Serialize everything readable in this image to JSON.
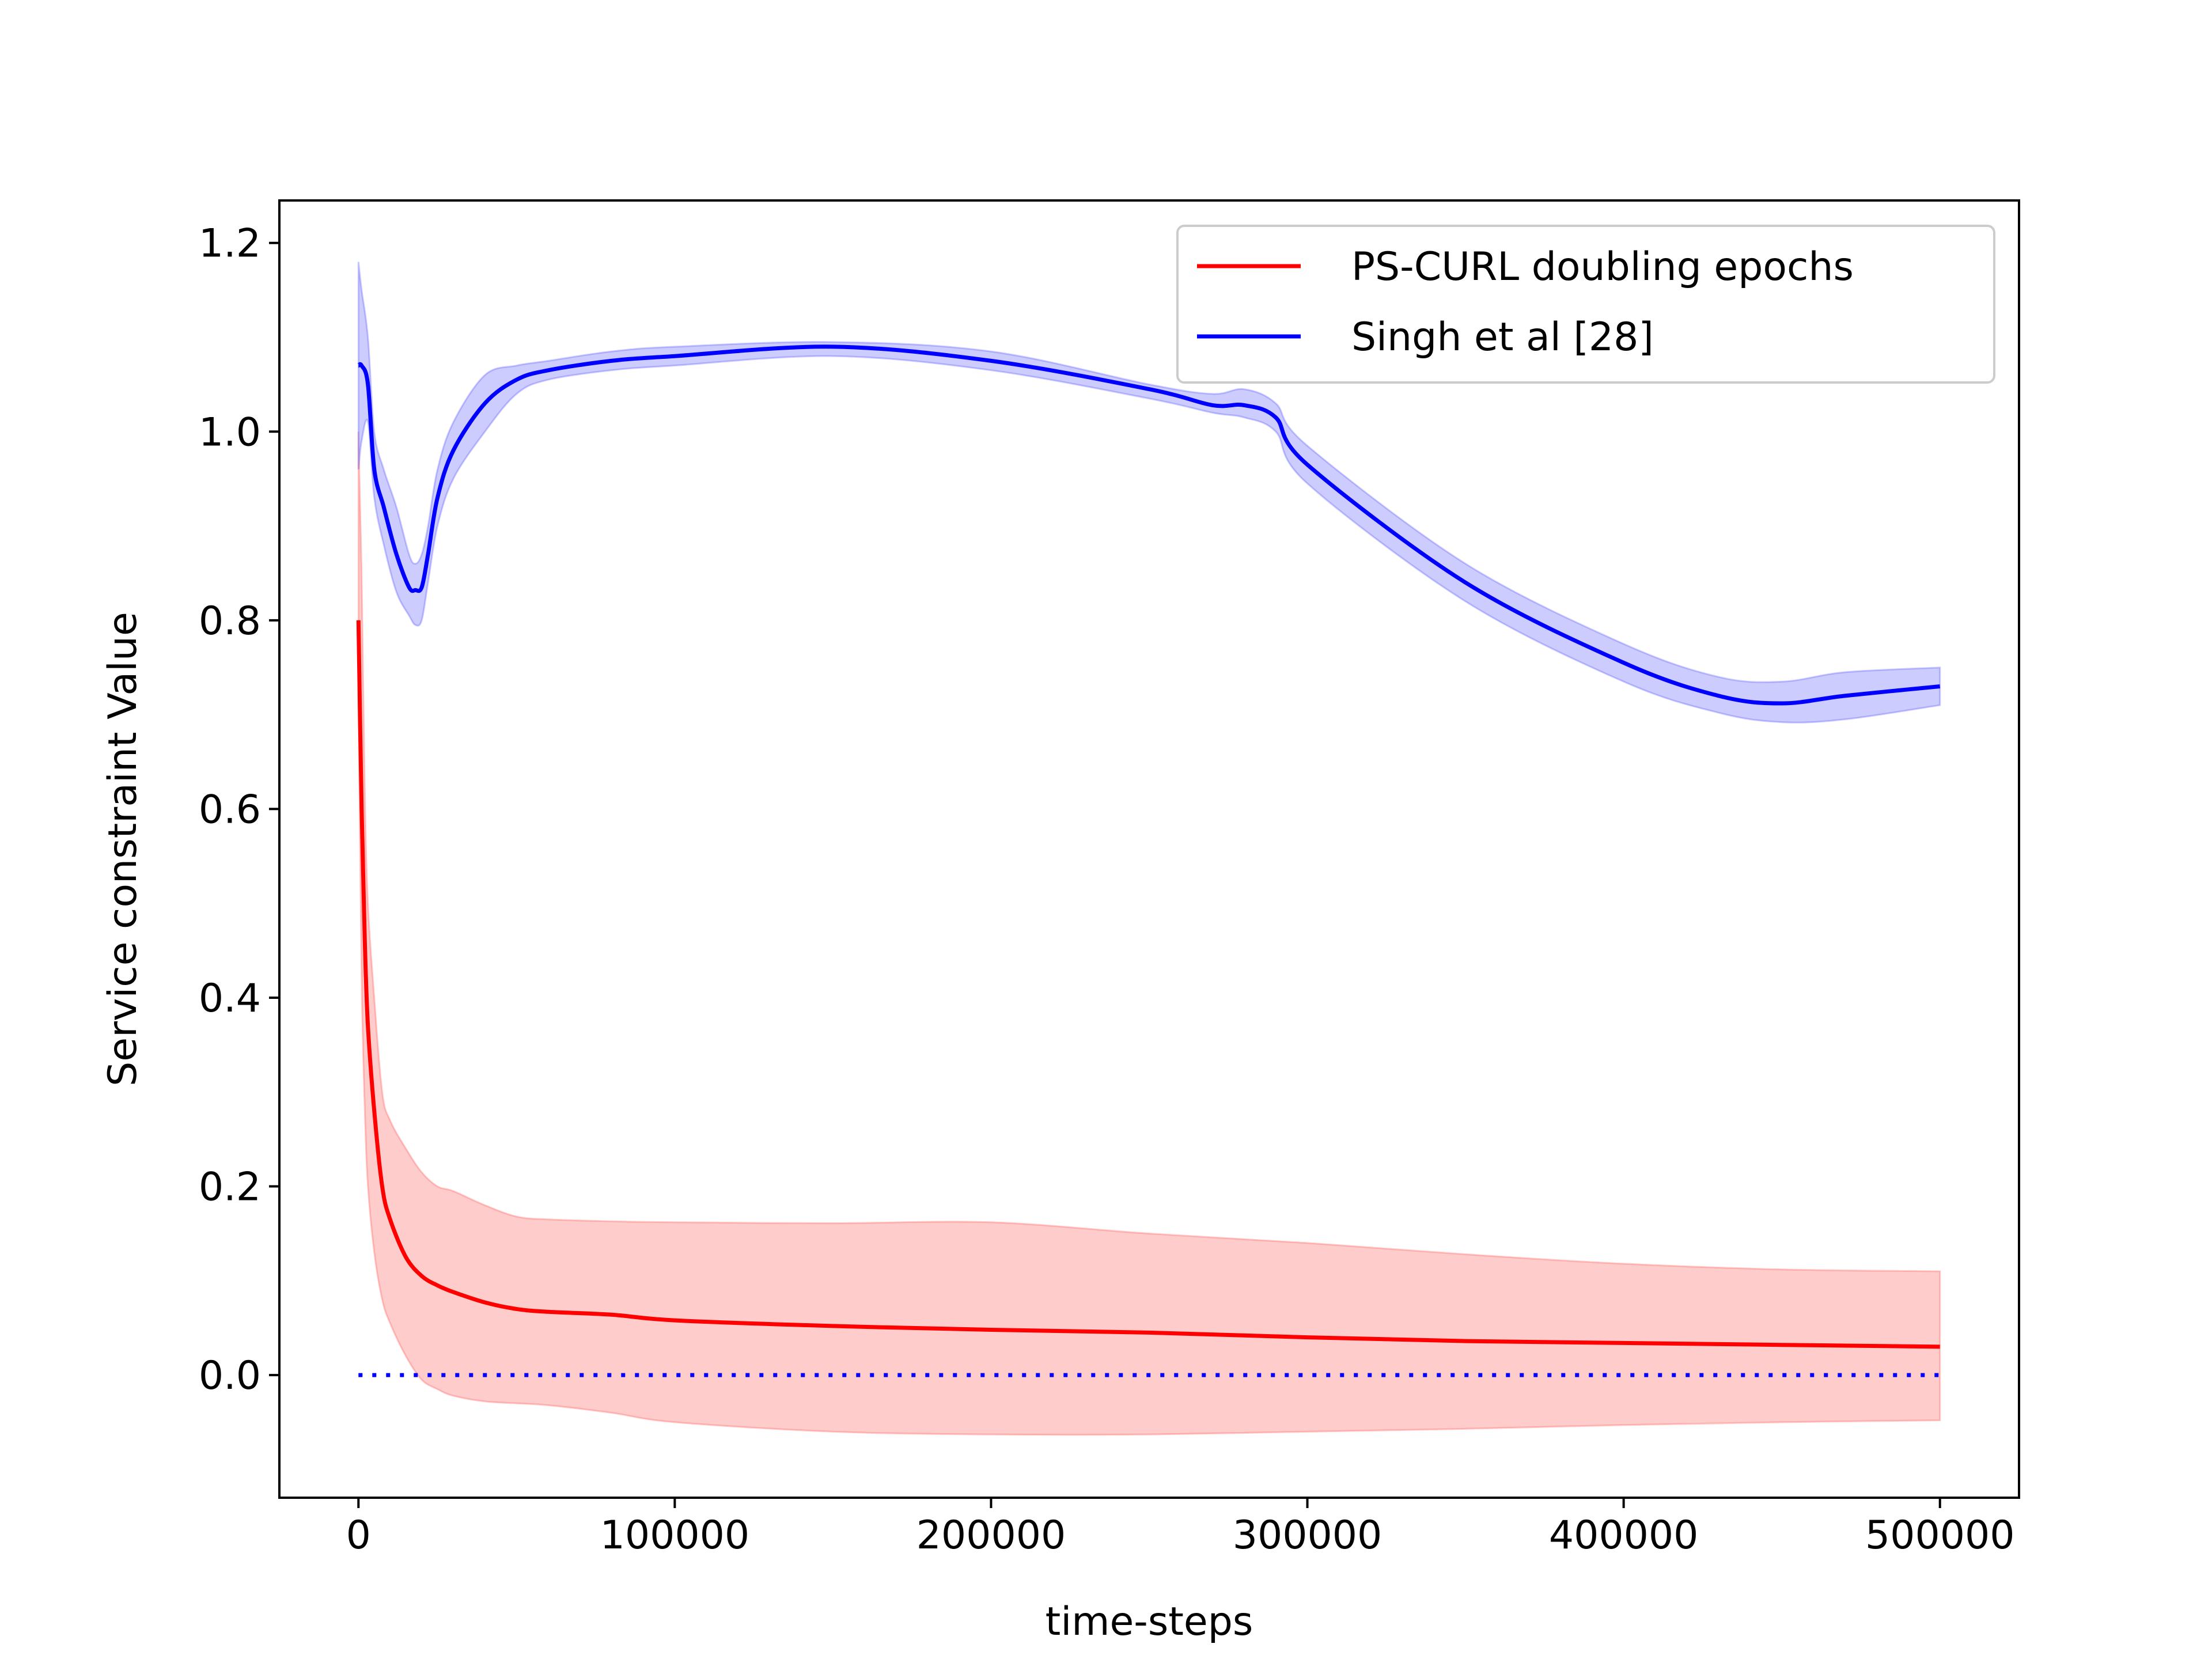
{
  "chart_data": {
    "type": "line",
    "title": "",
    "xlabel": "time-steps",
    "ylabel": "Service constraint Value",
    "xlim": [
      -25000,
      525000
    ],
    "ylim": [
      -0.13,
      1.245
    ],
    "xticks": [
      0,
      100000,
      200000,
      300000,
      400000,
      500000
    ],
    "xtick_labels": [
      "0",
      "100000",
      "200000",
      "300000",
      "400000",
      "500000"
    ],
    "yticks": [
      0.0,
      0.2,
      0.4,
      0.6,
      0.8,
      1.0,
      1.2
    ],
    "ytick_labels": [
      "0.0",
      "0.2",
      "0.4",
      "0.6",
      "0.8",
      "1.0",
      "1.2"
    ],
    "grid": false,
    "legend_position": "top-right",
    "series": [
      {
        "name": "PS-CURL doubling epochs",
        "color": "#ff0000",
        "band_color": "#ff9a9a",
        "x": [
          0,
          1000,
          2000,
          3000,
          5000,
          7500,
          10000,
          15000,
          20000,
          25000,
          30000,
          40000,
          50000,
          60000,
          80000,
          100000,
          150000,
          200000,
          250000,
          300000,
          350000,
          400000,
          450000,
          500000
        ],
        "mean": [
          0.8,
          0.6,
          0.46,
          0.37,
          0.28,
          0.2,
          0.165,
          0.125,
          0.105,
          0.095,
          0.088,
          0.077,
          0.07,
          0.067,
          0.064,
          0.058,
          0.052,
          0.048,
          0.045,
          0.04,
          0.036,
          0.034,
          0.032,
          0.03
        ],
        "upper": [
          1.0,
          0.85,
          0.62,
          0.5,
          0.4,
          0.3,
          0.27,
          0.24,
          0.215,
          0.2,
          0.195,
          0.18,
          0.168,
          0.165,
          0.163,
          0.162,
          0.161,
          0.162,
          0.15,
          0.14,
          0.128,
          0.118,
          0.112,
          0.11
        ],
        "lower": [
          0.71,
          0.42,
          0.28,
          0.2,
          0.13,
          0.08,
          0.055,
          0.02,
          -0.005,
          -0.015,
          -0.022,
          -0.028,
          -0.03,
          -0.032,
          -0.04,
          -0.05,
          -0.06,
          -0.063,
          -0.063,
          -0.06,
          -0.057,
          -0.053,
          -0.05,
          -0.048
        ]
      },
      {
        "name": "Singh et al [28]",
        "color": "#0000ff",
        "band_color": "#9999ff",
        "x": [
          0,
          1000,
          3000,
          5000,
          8000,
          12000,
          16000,
          18000,
          20000,
          22000,
          25000,
          30000,
          40000,
          50000,
          60000,
          80000,
          100000,
          150000,
          200000,
          250000,
          270000,
          280000,
          290000,
          300000,
          350000,
          400000,
          430000,
          450000,
          470000,
          500000
        ],
        "mean": [
          1.07,
          1.07,
          1.05,
          0.96,
          0.92,
          0.87,
          0.835,
          0.832,
          0.835,
          0.87,
          0.93,
          0.98,
          1.03,
          1.055,
          1.065,
          1.075,
          1.08,
          1.09,
          1.075,
          1.045,
          1.028,
          1.028,
          1.015,
          0.965,
          0.84,
          0.755,
          0.72,
          0.712,
          0.72,
          0.73
        ],
        "upper": [
          1.18,
          1.15,
          1.1,
          1.0,
          0.96,
          0.92,
          0.87,
          0.86,
          0.87,
          0.9,
          0.96,
          1.01,
          1.06,
          1.07,
          1.075,
          1.085,
          1.09,
          1.095,
          1.085,
          1.05,
          1.04,
          1.045,
          1.03,
          0.985,
          0.86,
          0.775,
          0.74,
          0.735,
          0.745,
          0.75
        ],
        "lower": [
          0.96,
          0.99,
          1.01,
          0.93,
          0.88,
          0.83,
          0.805,
          0.795,
          0.8,
          0.84,
          0.9,
          0.95,
          1.0,
          1.04,
          1.055,
          1.065,
          1.07,
          1.08,
          1.065,
          1.035,
          1.02,
          1.015,
          1.0,
          0.945,
          0.82,
          0.735,
          0.702,
          0.692,
          0.695,
          0.71
        ]
      }
    ],
    "reference_line": {
      "y": 0.0,
      "x_range": [
        0,
        500000
      ],
      "color": "#0000ff",
      "style": "dotted"
    }
  }
}
